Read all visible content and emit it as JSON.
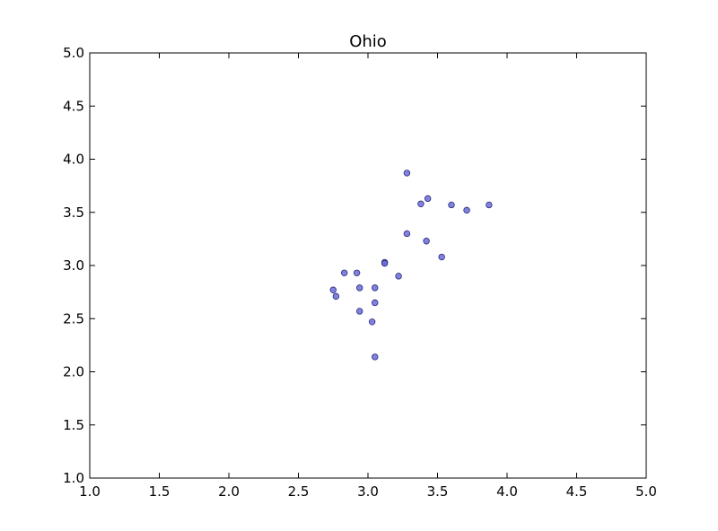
{
  "chart_data": {
    "type": "scatter",
    "title": "Ohio",
    "xlabel": "",
    "ylabel": "",
    "xlim": [
      1.0,
      5.0
    ],
    "ylim": [
      1.0,
      5.0
    ],
    "x_ticks": [
      "1.0",
      "1.5",
      "2.0",
      "2.5",
      "3.0",
      "3.5",
      "4.0",
      "4.5",
      "5.0"
    ],
    "y_ticks": [
      "1.0",
      "1.5",
      "2.0",
      "2.5",
      "3.0",
      "3.5",
      "4.0",
      "4.5",
      "5.0"
    ],
    "grid": false,
    "marker_color": "#6b6bd9",
    "marker_edge": "#2b2b7a",
    "points": [
      {
        "x": 3.28,
        "y": 3.87
      },
      {
        "x": 3.43,
        "y": 3.63
      },
      {
        "x": 3.38,
        "y": 3.58
      },
      {
        "x": 3.6,
        "y": 3.57
      },
      {
        "x": 3.87,
        "y": 3.57
      },
      {
        "x": 3.71,
        "y": 3.52
      },
      {
        "x": 3.28,
        "y": 3.3
      },
      {
        "x": 3.42,
        "y": 3.23
      },
      {
        "x": 3.53,
        "y": 3.08
      },
      {
        "x": 3.12,
        "y": 3.03
      },
      {
        "x": 3.12,
        "y": 3.02
      },
      {
        "x": 2.83,
        "y": 2.93
      },
      {
        "x": 2.92,
        "y": 2.93
      },
      {
        "x": 3.22,
        "y": 2.9
      },
      {
        "x": 2.94,
        "y": 2.79
      },
      {
        "x": 3.05,
        "y": 2.79
      },
      {
        "x": 2.75,
        "y": 2.77
      },
      {
        "x": 2.77,
        "y": 2.71
      },
      {
        "x": 3.05,
        "y": 2.65
      },
      {
        "x": 2.94,
        "y": 2.57
      },
      {
        "x": 3.03,
        "y": 2.47
      },
      {
        "x": 3.05,
        "y": 2.14
      }
    ]
  }
}
